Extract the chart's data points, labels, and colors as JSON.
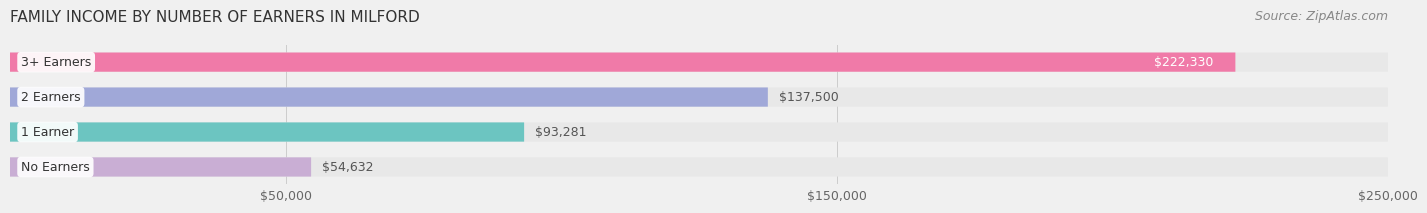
{
  "title": "FAMILY INCOME BY NUMBER OF EARNERS IN MILFORD",
  "source": "Source: ZipAtlas.com",
  "categories": [
    "No Earners",
    "1 Earner",
    "2 Earners",
    "3+ Earners"
  ],
  "values": [
    54632,
    93281,
    137500,
    222330
  ],
  "bar_colors": [
    "#c9aed4",
    "#6cc5c1",
    "#a0a8d8",
    "#f07aa8"
  ],
  "label_colors": [
    "#555555",
    "#555555",
    "#555555",
    "#ffffff"
  ],
  "value_labels": [
    "$54,632",
    "$93,281",
    "$137,500",
    "$222,330"
  ],
  "bg_color": "#f0f0f0",
  "bar_bg_color": "#e8e8e8",
  "xlim": [
    0,
    250000
  ],
  "xticks": [
    50000,
    150000,
    250000
  ],
  "xtick_labels": [
    "$50,000",
    "$150,000",
    "$250,000"
  ],
  "title_fontsize": 11,
  "source_fontsize": 9,
  "bar_label_fontsize": 9,
  "value_label_fontsize": 9,
  "tick_fontsize": 9
}
